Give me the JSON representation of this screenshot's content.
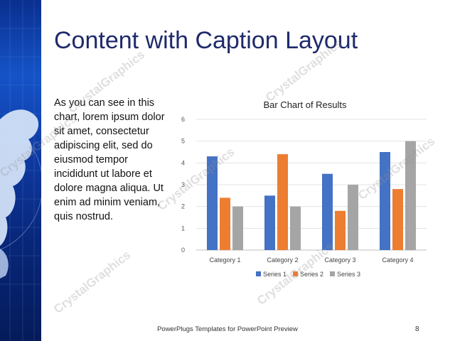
{
  "slide": {
    "title": "Content with Caption Layout",
    "caption": "As you can see in this chart, lorem ipsum dolor sit amet, consectetur adipiscing elit, sed do eiusmod tempor incididunt ut labore et dolore magna aliqua. Ut enim ad minim veniam, quis nostrud.",
    "footer": "PowerPlugs Templates for PowerPoint Preview",
    "page_number": "8",
    "watermark_text": "CrystalGraphics",
    "band_colors": [
      "#0a2f8f",
      "#1553c8",
      "#051b5a"
    ]
  },
  "chart_data": {
    "type": "bar",
    "title": "Bar Chart of Results",
    "categories": [
      "Category 1",
      "Category 2",
      "Category 3",
      "Category 4"
    ],
    "series": [
      {
        "name": "Series 1",
        "values": [
          4.3,
          2.5,
          3.5,
          4.5
        ],
        "color": "#4472c4"
      },
      {
        "name": "Series 2",
        "values": [
          2.4,
          4.4,
          1.8,
          2.8
        ],
        "color": "#ed7d31"
      },
      {
        "name": "Series 3",
        "values": [
          2,
          2,
          3,
          5
        ],
        "color": "#a5a5a5"
      }
    ],
    "ylim": [
      0,
      6
    ],
    "yticks": [
      "0",
      "1",
      "2",
      "3",
      "4",
      "5",
      "6"
    ],
    "grid": true,
    "legend_position": "bottom"
  }
}
